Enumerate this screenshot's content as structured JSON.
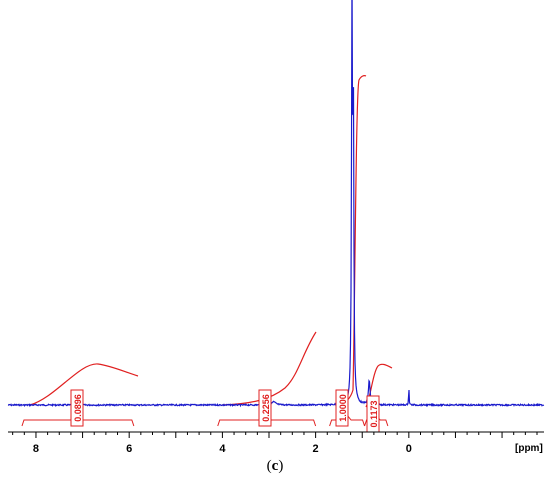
{
  "chart_data": {
    "type": "line",
    "x_axis": {
      "label": "[ppm]",
      "reversed": true,
      "range": [
        8.6,
        -2.9
      ],
      "major_ticks": [
        8,
        6,
        4,
        2,
        0
      ],
      "minor_step": 0.25
    },
    "spectrum": {
      "color": "#1a1acc",
      "baseline_y": 0.0,
      "peaks": [
        {
          "ppm": 1.22,
          "height": 1.0
        },
        {
          "ppm": 1.19,
          "height": 0.72
        },
        {
          "ppm": 0.85,
          "height": 0.062
        },
        {
          "ppm": 0.0,
          "height": 0.05
        },
        {
          "ppm": 2.9,
          "height": 0.008
        }
      ]
    },
    "integrals": {
      "color": "#e02020",
      "regions": [
        {
          "label": "0.0896",
          "from": 8.3,
          "to": 5.9
        },
        {
          "label": "0.2256",
          "from": 4.1,
          "to": 2.0
        },
        {
          "label": "1.0000",
          "from": 1.7,
          "to": 0.95
        },
        {
          "label": "0.1173",
          "from": 0.95,
          "to": 0.45
        }
      ]
    },
    "caption": "(c)"
  }
}
